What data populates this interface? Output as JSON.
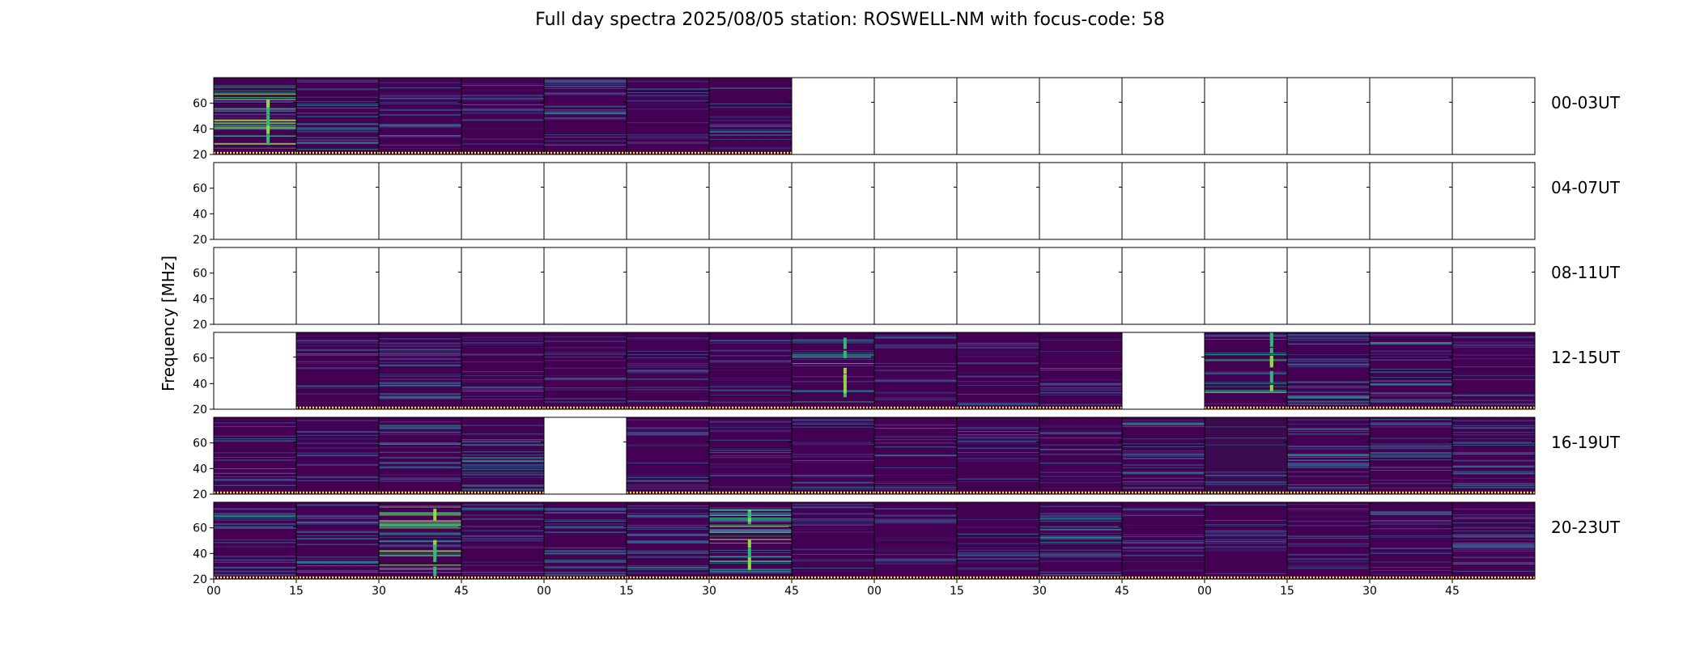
{
  "chart_data": {
    "type": "heatmap",
    "title": "Full day spectra 2025/08/05 station: ROSWELL-NM with focus-code: 58",
    "xlabel": "",
    "ylabel": "Frequency [MHz]",
    "y_ticks": [
      "20",
      "40",
      "60"
    ],
    "ylim": [
      20,
      80
    ],
    "x_tick_labels": [
      "00",
      "15",
      "30",
      "45",
      "00",
      "15",
      "30",
      "45",
      "00",
      "15",
      "30",
      "45",
      "00",
      "15",
      "30",
      "45"
    ],
    "colormap": "viridis",
    "grid": false,
    "panels_per_row": 16,
    "rows": [
      {
        "label": "00-03UT",
        "panels": [
          {
            "data": true,
            "style": "bright"
          },
          {
            "data": true,
            "style": "mid"
          },
          {
            "data": true,
            "style": "quiet"
          },
          {
            "data": true,
            "style": "quiet"
          },
          {
            "data": true,
            "style": "mid"
          },
          {
            "data": true,
            "style": "quiet"
          },
          {
            "data": true,
            "style": "quiet"
          },
          {
            "data": false
          },
          {
            "data": false
          },
          {
            "data": false
          },
          {
            "data": false
          },
          {
            "data": false
          },
          {
            "data": false
          },
          {
            "data": false
          },
          {
            "data": false
          },
          {
            "data": false
          }
        ]
      },
      {
        "label": "04-07UT",
        "panels": [
          {
            "data": false
          },
          {
            "data": false
          },
          {
            "data": false
          },
          {
            "data": false
          },
          {
            "data": false
          },
          {
            "data": false
          },
          {
            "data": false
          },
          {
            "data": false
          },
          {
            "data": false
          },
          {
            "data": false
          },
          {
            "data": false
          },
          {
            "data": false
          },
          {
            "data": false
          },
          {
            "data": false
          },
          {
            "data": false
          },
          {
            "data": false
          }
        ]
      },
      {
        "label": "08-11UT",
        "panels": [
          {
            "data": false
          },
          {
            "data": false
          },
          {
            "data": false
          },
          {
            "data": false
          },
          {
            "data": false
          },
          {
            "data": false
          },
          {
            "data": false
          },
          {
            "data": false
          },
          {
            "data": false
          },
          {
            "data": false
          },
          {
            "data": false
          },
          {
            "data": false
          },
          {
            "data": false
          },
          {
            "data": false
          },
          {
            "data": false
          },
          {
            "data": false
          }
        ]
      },
      {
        "label": "12-15UT",
        "panels": [
          {
            "data": false
          },
          {
            "data": true,
            "style": "quiet"
          },
          {
            "data": true,
            "style": "mid"
          },
          {
            "data": true,
            "style": "quiet"
          },
          {
            "data": true,
            "style": "quiet"
          },
          {
            "data": true,
            "style": "quiet"
          },
          {
            "data": true,
            "style": "quiet"
          },
          {
            "data": true,
            "style": "burst"
          },
          {
            "data": true,
            "style": "quiet"
          },
          {
            "data": true,
            "style": "quiet"
          },
          {
            "data": true,
            "style": "quiet"
          },
          {
            "data": false
          },
          {
            "data": true,
            "style": "burst"
          },
          {
            "data": true,
            "style": "mid"
          },
          {
            "data": true,
            "style": "mid"
          },
          {
            "data": true,
            "style": "quiet"
          }
        ]
      },
      {
        "label": "16-19UT",
        "panels": [
          {
            "data": true,
            "style": "quiet"
          },
          {
            "data": true,
            "style": "quiet"
          },
          {
            "data": true,
            "style": "mid"
          },
          {
            "data": true,
            "style": "mid"
          },
          {
            "data": false
          },
          {
            "data": true,
            "style": "quiet"
          },
          {
            "data": true,
            "style": "quiet"
          },
          {
            "data": true,
            "style": "quiet"
          },
          {
            "data": true,
            "style": "quiet"
          },
          {
            "data": true,
            "style": "quiet"
          },
          {
            "data": true,
            "style": "quiet"
          },
          {
            "data": true,
            "style": "mid"
          },
          {
            "data": true,
            "style": "dark"
          },
          {
            "data": true,
            "style": "mid"
          },
          {
            "data": true,
            "style": "mid"
          },
          {
            "data": true,
            "style": "mid"
          }
        ]
      },
      {
        "label": "20-23UT",
        "panels": [
          {
            "data": true,
            "style": "mid"
          },
          {
            "data": true,
            "style": "mid"
          },
          {
            "data": true,
            "style": "bright"
          },
          {
            "data": true,
            "style": "quiet"
          },
          {
            "data": true,
            "style": "mid"
          },
          {
            "data": true,
            "style": "mid"
          },
          {
            "data": true,
            "style": "bright"
          },
          {
            "data": true,
            "style": "quiet"
          },
          {
            "data": true,
            "style": "quiet"
          },
          {
            "data": true,
            "style": "quiet"
          },
          {
            "data": true,
            "style": "mid"
          },
          {
            "data": true,
            "style": "quiet"
          },
          {
            "data": true,
            "style": "quiet"
          },
          {
            "data": true,
            "style": "quiet"
          },
          {
            "data": true,
            "style": "quiet"
          },
          {
            "data": true,
            "style": "mid"
          }
        ]
      }
    ],
    "colors": {
      "background": "#440154",
      "base": "#3b1f66",
      "line_dim": "#3e4a89",
      "line_mid": "#31688e",
      "line_teal": "#21918c",
      "line_green": "#35b779",
      "line_bright": "#90d743",
      "line_yellow": "#fde725",
      "dark": "#3a0b4f"
    }
  }
}
